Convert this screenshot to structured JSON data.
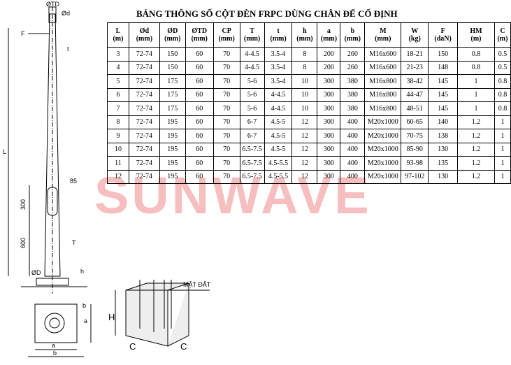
{
  "title": "BẢNG THÔNG SỐ CỘT ĐÈN FRPC DÙNG CHÂN ĐẾ CỐ ĐỊNH",
  "table": {
    "columns": [
      [
        "L",
        "(m)"
      ],
      [
        "Ød",
        "(mm)"
      ],
      [
        "ØD",
        "(mm)"
      ],
      [
        "ØTD",
        "(mm)"
      ],
      [
        "CP",
        "(mm)"
      ],
      [
        "T",
        "(mm)"
      ],
      [
        "t",
        "(mm)"
      ],
      [
        "h",
        "(mm)"
      ],
      [
        "a",
        "(mm)"
      ],
      [
        "b",
        "(mm)"
      ],
      [
        "M",
        "(mm)"
      ],
      [
        "W",
        "(kg)"
      ],
      [
        "F",
        "(daN)"
      ],
      [
        "HM",
        "(m)"
      ],
      [
        "C",
        "(m)"
      ]
    ],
    "rows": [
      [
        "3",
        "72-74",
        "150",
        "60",
        "70",
        "4-4.5",
        "3.5-4",
        "8",
        "200",
        "260",
        "M16x600",
        "18-21",
        "150",
        "0.8",
        "0.5"
      ],
      [
        "4",
        "72-74",
        "150",
        "60",
        "70",
        "4-4.5",
        "3.5-4",
        "8",
        "200",
        "260",
        "M16x600",
        "21-23",
        "148",
        "0.8",
        "0.5"
      ],
      [
        "5",
        "72-74",
        "175",
        "60",
        "70",
        "5-6",
        "3.5-4",
        "10",
        "300",
        "380",
        "M16x800",
        "38-42",
        "145",
        "1",
        "0.8"
      ],
      [
        "6",
        "72-74",
        "175",
        "60",
        "70",
        "5-6",
        "4-4.5",
        "10",
        "300",
        "380",
        "M16x800",
        "44-47",
        "145",
        "1",
        "0.8"
      ],
      [
        "7",
        "72-74",
        "175",
        "60",
        "70",
        "5-6",
        "4-4.5",
        "10",
        "300",
        "380",
        "M16x800",
        "48-51",
        "145",
        "1",
        "0.8"
      ],
      [
        "8",
        "72-74",
        "195",
        "60",
        "70",
        "6-7",
        "4.5-5",
        "12",
        "300",
        "400",
        "M20x1000",
        "60-65",
        "140",
        "1.2",
        "1"
      ],
      [
        "9",
        "72-74",
        "195",
        "60",
        "70",
        "6-7",
        "4.5-5",
        "12",
        "300",
        "400",
        "M20x1000",
        "70-75",
        "138",
        "1.2",
        "1"
      ],
      [
        "10",
        "72-74",
        "195",
        "60",
        "70",
        "6.5-7.5",
        "4.5-5",
        "12",
        "300",
        "400",
        "M20x1000",
        "85-90",
        "130",
        "1.2",
        "1"
      ],
      [
        "11",
        "72-74",
        "195",
        "60",
        "70",
        "6.5-7.5",
        "4.5-5.5",
        "12",
        "300",
        "400",
        "M20x1000",
        "93-98",
        "135",
        "1.2",
        "1"
      ],
      [
        "12",
        "72-74",
        "195",
        "60",
        "70",
        "6.5-7.5",
        "4.5-5.5",
        "12",
        "300",
        "400",
        "M20x1000",
        "97-102",
        "130",
        "1.2",
        "1"
      ]
    ]
  },
  "drawing": {
    "top_diameter": "ØTD",
    "small_diameter": "Ød",
    "force": "F",
    "thickness_top": "t",
    "length": "L",
    "dim_85": "85",
    "dim_300": "300",
    "dim_600": "600",
    "thickness": "T",
    "base_diameter": "ØD",
    "height": "h",
    "plan_a": "a",
    "plan_b_side": "b",
    "plan_a2": "a",
    "plan_b": "b",
    "ground": "MẶT ĐẤT",
    "foundation_h": "H",
    "foundation_c1": "C",
    "foundation_c2": "C"
  },
  "watermark": "SUNWAVE"
}
